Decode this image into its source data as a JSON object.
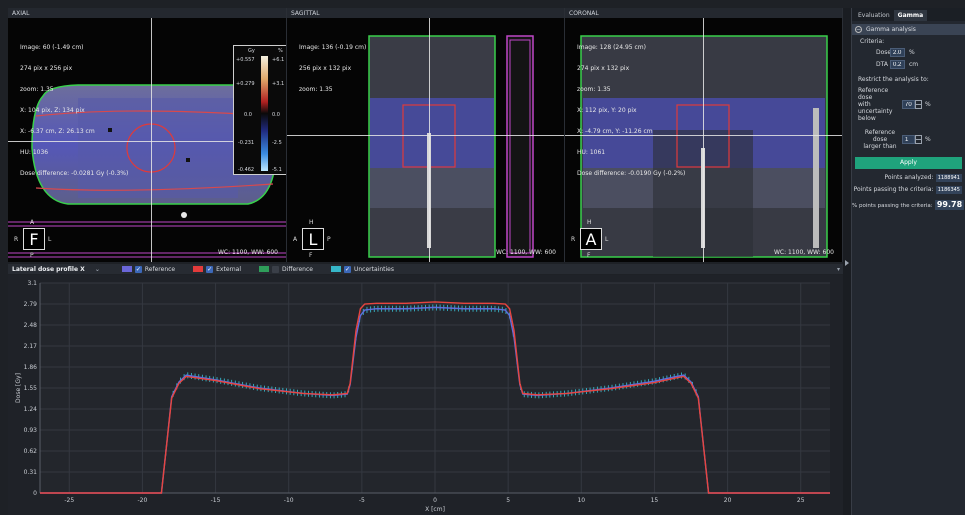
{
  "views": {
    "axial": {
      "title": "AXIAL",
      "info": [
        "Image: 60 (-1.49 cm)",
        "274 pix x 256 pix",
        "zoom: 1.35",
        "X: 104 pix, Z: 134 pix",
        "X: -6.37 cm, Z: 26.13 cm",
        "HU: 1036",
        "Dose difference: -0.0281 Gy (-0.3%)"
      ],
      "orient": {
        "box": "F",
        "top": "A",
        "bottom": "P",
        "left": "R",
        "right": "L"
      },
      "wcww": "WC: 1100, WW:  600",
      "colorbar": {
        "col1": "Gy",
        "col2": "%",
        "ticks_left": [
          "+0.557",
          "+0.279",
          "0.0",
          "-0.231",
          "-0.462"
        ],
        "ticks_right": [
          "+6.1",
          "+3.1",
          "0.0",
          "-2.5",
          "-5.1"
        ]
      }
    },
    "sagittal": {
      "title": "SAGITTAL",
      "info": [
        "Image: 136 (-0.19 cm)",
        "256 pix x 132 pix",
        "zoom: 1.35"
      ],
      "orient": {
        "box": "L",
        "top": "H",
        "bottom": "F",
        "left": "A",
        "right": "P"
      },
      "wcww": "WC: 1100, WW:  600"
    },
    "coronal": {
      "title": "CORONAL",
      "info": [
        "Image: 128 (24.95 cm)",
        "274 pix x 132 pix",
        "zoom: 1.35",
        "X: 112 pix, Y: 20 pix",
        "X: -4.79 cm, Y: -11.26 cm",
        "HU: 1061",
        "Dose difference: -0.0190 Gy (-0.2%)"
      ],
      "orient": {
        "box": "A",
        "top": "H",
        "bottom": "F",
        "left": "R",
        "right": "L"
      },
      "wcww": "WC: 1100, WW:  600"
    }
  },
  "legend": {
    "profile_select": "Lateral dose profile X",
    "items": [
      {
        "label": "Reference",
        "checked": true,
        "color": "#6a66d8"
      },
      {
        "label": "External",
        "checked": true,
        "color": "#e23b3b"
      },
      {
        "label": "Difference",
        "checked": false,
        "color": "#2f9e5a"
      },
      {
        "label": "Uncertainties",
        "checked": true,
        "color": "#36b6c8"
      }
    ]
  },
  "panel": {
    "tabs": [
      "Evaluation",
      "Gamma"
    ],
    "active_tab": "Gamma",
    "section": "Gamma analysis",
    "criteria_label": "Criteria:",
    "dose_label": "Dose",
    "dose_value": "2.0",
    "dose_unit": "%",
    "dta_label": "DTA",
    "dta_value": "0.2",
    "dta_unit": "cm",
    "restrict_label": "Restrict the analysis to:",
    "ref_unc_label": [
      "Reference dose",
      "with uncertainty",
      "below"
    ],
    "ref_unc_value": "70",
    "ref_unc_unit": "%",
    "ref_larger_label": [
      "Reference dose",
      "larger than"
    ],
    "ref_larger_value": "1",
    "ref_larger_unit": "%",
    "apply_label": "Apply",
    "points_analyzed_label": "Points analyzed:",
    "points_analyzed_value": "1188941",
    "points_passing_label": "Points passing the criteria:",
    "points_passing_value": "1186345",
    "pct_passing_label": "% points passing the criteria:",
    "pct_passing_value": "99.78"
  },
  "chart_data": {
    "type": "line",
    "ylabel": "Dose [Gy]",
    "xlabel": "X [cm]",
    "xlim": [
      -27,
      27
    ],
    "ylim": [
      0,
      3.1
    ],
    "yticks": [
      "0",
      "0.31",
      "0.62",
      "0.93",
      "1.24",
      "1.55",
      "1.86",
      "2.17",
      "2.48",
      "2.79",
      "3.1"
    ],
    "xticks": [
      "-25",
      "-20",
      "-15",
      "-10",
      "-5",
      "0",
      "5",
      "10",
      "15",
      "20",
      "25"
    ],
    "series": [
      {
        "name": "External",
        "color": "#e8453f",
        "x": [
          -27,
          -18.7,
          -18.4,
          -18.0,
          -17.5,
          -17.0,
          -15,
          -12,
          -9,
          -7,
          -6.0,
          -5.8,
          -5.4,
          -5.1,
          -4.8,
          -4,
          -2,
          0,
          2,
          4,
          4.8,
          5.1,
          5.4,
          5.8,
          6.0,
          7,
          9,
          12,
          15,
          16.5,
          17.0,
          17.5,
          18.0,
          18.4,
          18.7,
          27
        ],
        "y": [
          0,
          0,
          0.6,
          1.4,
          1.62,
          1.72,
          1.66,
          1.54,
          1.47,
          1.45,
          1.47,
          1.62,
          2.4,
          2.72,
          2.79,
          2.8,
          2.8,
          2.82,
          2.8,
          2.8,
          2.79,
          2.72,
          2.4,
          1.62,
          1.47,
          1.45,
          1.47,
          1.54,
          1.63,
          1.7,
          1.72,
          1.62,
          1.4,
          0.6,
          0,
          0
        ]
      },
      {
        "name": "Reference",
        "color": "#5f6ee0",
        "x": [
          -27,
          -18.7,
          -18.4,
          -18.0,
          -17.5,
          -17.0,
          -15,
          -12,
          -9,
          -7,
          -6.0,
          -5.8,
          -5.4,
          -5.1,
          -4.8,
          -4,
          -2,
          0,
          2,
          4,
          4.8,
          5.1,
          5.4,
          5.8,
          6.0,
          7,
          9,
          12,
          15,
          16.5,
          17.0,
          17.5,
          18.0,
          18.4,
          18.7,
          27
        ],
        "y": [
          0,
          0,
          0.6,
          1.42,
          1.64,
          1.74,
          1.67,
          1.55,
          1.47,
          1.44,
          1.46,
          1.6,
          2.3,
          2.62,
          2.7,
          2.72,
          2.72,
          2.74,
          2.72,
          2.72,
          2.7,
          2.62,
          2.3,
          1.6,
          1.46,
          1.44,
          1.47,
          1.55,
          1.65,
          1.72,
          1.74,
          1.64,
          1.42,
          0.6,
          0,
          0
        ]
      }
    ]
  }
}
